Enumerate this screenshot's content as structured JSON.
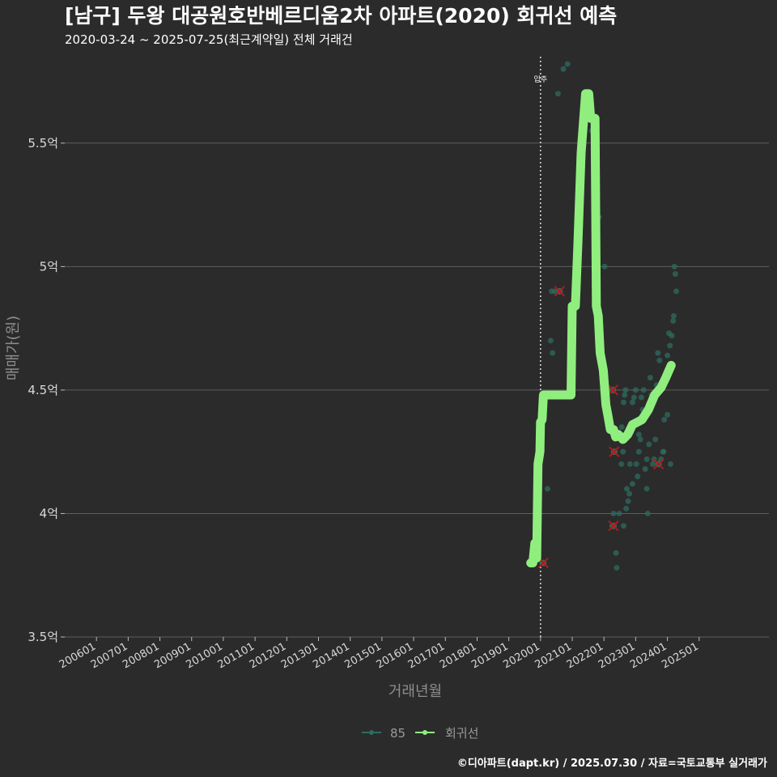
{
  "chart_data": {
    "type": "line",
    "title": "[남구] 두왕 대공원호반베르디움2차 아파트(2020) 회귀선 예측",
    "subtitle": "2020-03-24 ~ 2025-07-25(최근계약일) 전체 거래건",
    "xlabel": "거래년월",
    "ylabel": "매매가(원)",
    "caption": "©디아파트(dapt.kr) / 2025.07.30 / 자료=국토교통부 실거래가",
    "annotation": {
      "label": "입주",
      "x": 2020.0
    },
    "colors": {
      "background": "#2b2b2c",
      "grid": "#5e5e5e",
      "regression": "#90ee7e",
      "points": "#2f6b5e",
      "outlier": "#b81818"
    },
    "x_ticks": [
      "200601",
      "200701",
      "200801",
      "200901",
      "201001",
      "201101",
      "201201",
      "201301",
      "201401",
      "201501",
      "201601",
      "201701",
      "201801",
      "201901",
      "202001",
      "202101",
      "202201",
      "202301",
      "202401",
      "202501"
    ],
    "y_ticks": [
      {
        "value": 3.5,
        "label": "3.5억"
      },
      {
        "value": 4.0,
        "label": "4억"
      },
      {
        "value": 4.5,
        "label": "4.5억"
      },
      {
        "value": 5.0,
        "label": "5억"
      },
      {
        "value": 5.5,
        "label": "5.5억"
      }
    ],
    "xlim": [
      2005.0,
      2027.2
    ],
    "ylim": [
      3.5,
      5.85
    ],
    "legend": [
      {
        "name": "85",
        "color": "#2f6b5e"
      },
      {
        "name": "회귀선",
        "color": "#90ee7e"
      }
    ],
    "regression_line": [
      [
        2019.69,
        3.8
      ],
      [
        2019.76,
        3.8
      ],
      [
        2019.82,
        3.88
      ],
      [
        2019.88,
        3.82
      ],
      [
        2019.92,
        4.2
      ],
      [
        2019.98,
        4.25
      ],
      [
        2020.0,
        4.37
      ],
      [
        2020.05,
        4.38
      ],
      [
        2020.09,
        4.48
      ],
      [
        2020.2,
        4.48
      ],
      [
        2020.5,
        4.48
      ],
      [
        2020.96,
        4.48
      ],
      [
        2021.0,
        4.84
      ],
      [
        2021.1,
        4.84
      ],
      [
        2021.18,
        5.1
      ],
      [
        2021.28,
        5.46
      ],
      [
        2021.42,
        5.7
      ],
      [
        2021.52,
        5.7
      ],
      [
        2021.58,
        5.6
      ],
      [
        2021.72,
        5.6
      ],
      [
        2021.76,
        4.84
      ],
      [
        2021.82,
        4.8
      ],
      [
        2021.88,
        4.65
      ],
      [
        2021.98,
        4.58
      ],
      [
        2022.06,
        4.44
      ],
      [
        2022.12,
        4.4
      ],
      [
        2022.2,
        4.34
      ],
      [
        2022.3,
        4.34
      ],
      [
        2022.37,
        4.31
      ],
      [
        2022.45,
        4.32
      ],
      [
        2022.6,
        4.3
      ],
      [
        2022.75,
        4.32
      ],
      [
        2022.9,
        4.36
      ],
      [
        2023.05,
        4.37
      ],
      [
        2023.2,
        4.38
      ],
      [
        2023.4,
        4.42
      ],
      [
        2023.6,
        4.48
      ],
      [
        2023.8,
        4.51
      ],
      [
        2023.95,
        4.55
      ],
      [
        2024.05,
        4.58
      ],
      [
        2024.12,
        4.6
      ]
    ],
    "transactions": [
      [
        2020.05,
        3.8
      ],
      [
        2020.22,
        4.1
      ],
      [
        2020.32,
        4.7
      ],
      [
        2020.35,
        4.9
      ],
      [
        2020.38,
        4.65
      ],
      [
        2020.45,
        4.9
      ],
      [
        2020.55,
        5.7
      ],
      [
        2020.72,
        5.8
      ],
      [
        2020.85,
        5.82
      ],
      [
        2021.62,
        5.55
      ],
      [
        2021.72,
        5.25
      ],
      [
        2021.84,
        5.2
      ],
      [
        2022.02,
        5.0
      ],
      [
        2022.22,
        4.5
      ],
      [
        2022.26,
        3.95
      ],
      [
        2022.3,
        4.0
      ],
      [
        2022.34,
        4.25
      ],
      [
        2022.38,
        3.84
      ],
      [
        2022.4,
        3.78
      ],
      [
        2022.48,
        4.0
      ],
      [
        2022.55,
        4.2
      ],
      [
        2022.6,
        4.25
      ],
      [
        2022.62,
        4.45
      ],
      [
        2022.65,
        4.48
      ],
      [
        2022.68,
        4.5
      ],
      [
        2022.62,
        3.95
      ],
      [
        2022.72,
        4.1
      ],
      [
        2022.76,
        4.05
      ],
      [
        2022.8,
        4.08
      ],
      [
        2022.82,
        4.2
      ],
      [
        2022.86,
        4.33
      ],
      [
        2022.9,
        4.45
      ],
      [
        2022.95,
        4.47
      ],
      [
        2023.0,
        4.5
      ],
      [
        2023.02,
        4.2
      ],
      [
        2023.06,
        4.15
      ],
      [
        2023.1,
        4.25
      ],
      [
        2023.15,
        4.3
      ],
      [
        2023.18,
        4.47
      ],
      [
        2023.22,
        4.42
      ],
      [
        2023.25,
        4.5
      ],
      [
        2023.3,
        4.18
      ],
      [
        2023.35,
        4.22
      ],
      [
        2023.38,
        4.0
      ],
      [
        2023.42,
        4.28
      ],
      [
        2023.46,
        4.55
      ],
      [
        2023.5,
        4.48
      ],
      [
        2023.54,
        4.2
      ],
      [
        2023.58,
        4.22
      ],
      [
        2023.62,
        4.3
      ],
      [
        2023.66,
        4.52
      ],
      [
        2023.7,
        4.65
      ],
      [
        2023.75,
        4.62
      ],
      [
        2023.8,
        4.22
      ],
      [
        2023.86,
        4.25
      ],
      [
        2023.9,
        4.38
      ],
      [
        2023.95,
        4.55
      ],
      [
        2024.0,
        4.64
      ],
      [
        2024.05,
        4.73
      ],
      [
        2024.08,
        4.68
      ],
      [
        2024.1,
        4.2
      ],
      [
        2024.14,
        4.72
      ],
      [
        2024.18,
        4.78
      ],
      [
        2024.2,
        4.8
      ],
      [
        2024.22,
        5.0
      ],
      [
        2024.25,
        4.97
      ],
      [
        2024.28,
        4.9
      ],
      [
        2024.0,
        4.4
      ],
      [
        2023.88,
        4.25
      ],
      [
        2022.9,
        4.12
      ],
      [
        2023.35,
        4.1
      ],
      [
        2022.7,
        4.02
      ],
      [
        2023.1,
        4.32
      ],
      [
        2022.56,
        4.35
      ],
      [
        2023.55,
        4.45
      ]
    ],
    "outliers": [
      [
        2020.09,
        3.8
      ],
      [
        2020.6,
        4.9
      ],
      [
        2022.28,
        4.5
      ],
      [
        2022.32,
        4.25
      ],
      [
        2022.3,
        3.95
      ],
      [
        2023.72,
        4.2
      ]
    ]
  }
}
